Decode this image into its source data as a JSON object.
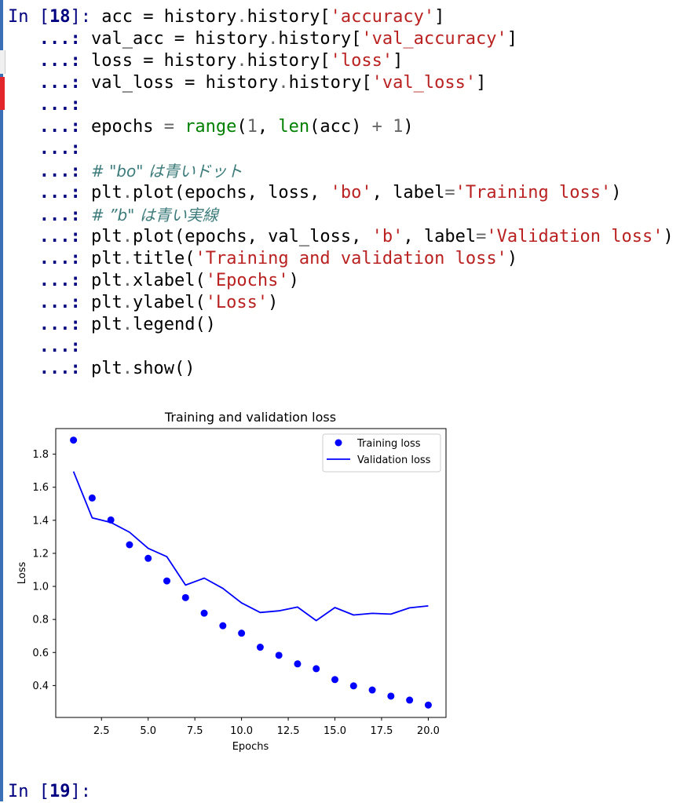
{
  "cells": [
    {
      "prompt_in": "In [",
      "prompt_num": "18",
      "prompt_close": "]:",
      "continuation": "   ...:",
      "lines": [
        {
          "tokens": [
            {
              "t": "acc = history",
              "c": ""
            },
            {
              "t": ".",
              "c": "op"
            },
            {
              "t": "history[",
              "c": ""
            },
            {
              "t": "'accuracy'",
              "c": "str"
            },
            {
              "t": "]",
              "c": ""
            }
          ]
        },
        {
          "tokens": [
            {
              "t": "val_acc = history",
              "c": ""
            },
            {
              "t": ".",
              "c": "op"
            },
            {
              "t": "history[",
              "c": ""
            },
            {
              "t": "'val_accuracy'",
              "c": "str"
            },
            {
              "t": "]",
              "c": ""
            }
          ]
        },
        {
          "tokens": [
            {
              "t": "loss = history",
              "c": ""
            },
            {
              "t": ".",
              "c": "op"
            },
            {
              "t": "history[",
              "c": ""
            },
            {
              "t": "'loss'",
              "c": "str"
            },
            {
              "t": "]",
              "c": ""
            }
          ]
        },
        {
          "tokens": [
            {
              "t": "val_loss = history",
              "c": ""
            },
            {
              "t": ".",
              "c": "op"
            },
            {
              "t": "history[",
              "c": ""
            },
            {
              "t": "'val_loss'",
              "c": "str"
            },
            {
              "t": "]",
              "c": ""
            }
          ]
        },
        {
          "tokens": []
        },
        {
          "tokens": [
            {
              "t": "epochs ",
              "c": ""
            },
            {
              "t": "=",
              "c": "op"
            },
            {
              "t": " ",
              "c": ""
            },
            {
              "t": "range",
              "c": "bi"
            },
            {
              "t": "(",
              "c": ""
            },
            {
              "t": "1",
              "c": "num"
            },
            {
              "t": ", ",
              "c": ""
            },
            {
              "t": "len",
              "c": "bi"
            },
            {
              "t": "(acc) ",
              "c": ""
            },
            {
              "t": "+",
              "c": "op"
            },
            {
              "t": " ",
              "c": ""
            },
            {
              "t": "1",
              "c": "num"
            },
            {
              "t": ")",
              "c": ""
            }
          ]
        },
        {
          "tokens": []
        },
        {
          "tokens": [
            {
              "t": "# \"bo\" は青いドット",
              "c": "com"
            }
          ]
        },
        {
          "tokens": [
            {
              "t": "plt",
              "c": ""
            },
            {
              "t": ".",
              "c": "op"
            },
            {
              "t": "plot(epochs, loss, ",
              "c": ""
            },
            {
              "t": "'bo'",
              "c": "str"
            },
            {
              "t": ", label",
              "c": ""
            },
            {
              "t": "=",
              "c": "op"
            },
            {
              "t": "'Training loss'",
              "c": "str"
            },
            {
              "t": ")",
              "c": ""
            }
          ]
        },
        {
          "tokens": [
            {
              "t": "# ”b\" は青い実線",
              "c": "com"
            }
          ]
        },
        {
          "tokens": [
            {
              "t": "plt",
              "c": ""
            },
            {
              "t": ".",
              "c": "op"
            },
            {
              "t": "plot(epochs, val_loss, ",
              "c": ""
            },
            {
              "t": "'b'",
              "c": "str"
            },
            {
              "t": ", label",
              "c": ""
            },
            {
              "t": "=",
              "c": "op"
            },
            {
              "t": "'Validation loss'",
              "c": "str"
            },
            {
              "t": ")",
              "c": ""
            }
          ]
        },
        {
          "tokens": [
            {
              "t": "plt",
              "c": ""
            },
            {
              "t": ".",
              "c": "op"
            },
            {
              "t": "title(",
              "c": ""
            },
            {
              "t": "'Training and validation loss'",
              "c": "str"
            },
            {
              "t": ")",
              "c": ""
            }
          ]
        },
        {
          "tokens": [
            {
              "t": "plt",
              "c": ""
            },
            {
              "t": ".",
              "c": "op"
            },
            {
              "t": "xlabel(",
              "c": ""
            },
            {
              "t": "'Epochs'",
              "c": "str"
            },
            {
              "t": ")",
              "c": ""
            }
          ]
        },
        {
          "tokens": [
            {
              "t": "plt",
              "c": ""
            },
            {
              "t": ".",
              "c": "op"
            },
            {
              "t": "ylabel(",
              "c": ""
            },
            {
              "t": "'Loss'",
              "c": "str"
            },
            {
              "t": ")",
              "c": ""
            }
          ]
        },
        {
          "tokens": [
            {
              "t": "plt",
              "c": ""
            },
            {
              "t": ".",
              "c": "op"
            },
            {
              "t": "legend()",
              "c": ""
            }
          ]
        },
        {
          "tokens": []
        },
        {
          "tokens": [
            {
              "t": "plt",
              "c": ""
            },
            {
              "t": ".",
              "c": "op"
            },
            {
              "t": "show()",
              "c": ""
            }
          ]
        }
      ]
    }
  ],
  "next_prompt": {
    "prompt_in": "In [",
    "prompt_num": "19",
    "prompt_close": "]:"
  },
  "colors": {
    "prompt": "#000080",
    "string": "#ba2121",
    "builtin": "#008000",
    "comment": "#3d7b7b",
    "series": "#0000ff"
  },
  "chart_data": {
    "type": "line",
    "title": "Training and validation loss",
    "xlabel": "Epochs",
    "ylabel": "Loss",
    "x": [
      1,
      2,
      3,
      4,
      5,
      6,
      7,
      8,
      9,
      10,
      11,
      12,
      13,
      14,
      15,
      16,
      17,
      18,
      19,
      20
    ],
    "xlim": [
      0.05,
      20.95
    ],
    "ylim": [
      0.207,
      1.955
    ],
    "xticks": [
      2.5,
      5.0,
      7.5,
      10.0,
      12.5,
      15.0,
      17.5,
      20.0
    ],
    "xtick_labels": [
      "2.5",
      "5.0",
      "7.5",
      "10.0",
      "12.5",
      "15.0",
      "17.5",
      "20.0"
    ],
    "yticks": [
      0.4,
      0.6,
      0.8,
      1.0,
      1.2,
      1.4,
      1.6,
      1.8
    ],
    "ytick_labels": [
      "0.4",
      "0.6",
      "0.8",
      "1.0",
      "1.2",
      "1.4",
      "1.6",
      "1.8"
    ],
    "legend_position": "upper right",
    "series": [
      {
        "name": "Training loss",
        "style": "dots",
        "color": "#0000ff",
        "values": [
          1.885,
          1.535,
          1.402,
          1.252,
          1.17,
          1.033,
          0.932,
          0.838,
          0.762,
          0.717,
          0.632,
          0.583,
          0.531,
          0.502,
          0.436,
          0.398,
          0.373,
          0.336,
          0.312,
          0.282
        ]
      },
      {
        "name": "Validation loss",
        "style": "line",
        "color": "#0000ff",
        "values": [
          1.695,
          1.415,
          1.387,
          1.328,
          1.23,
          1.18,
          1.008,
          1.05,
          0.988,
          0.9,
          0.842,
          0.852,
          0.875,
          0.793,
          0.872,
          0.827,
          0.837,
          0.832,
          0.87,
          0.882
        ]
      }
    ]
  }
}
